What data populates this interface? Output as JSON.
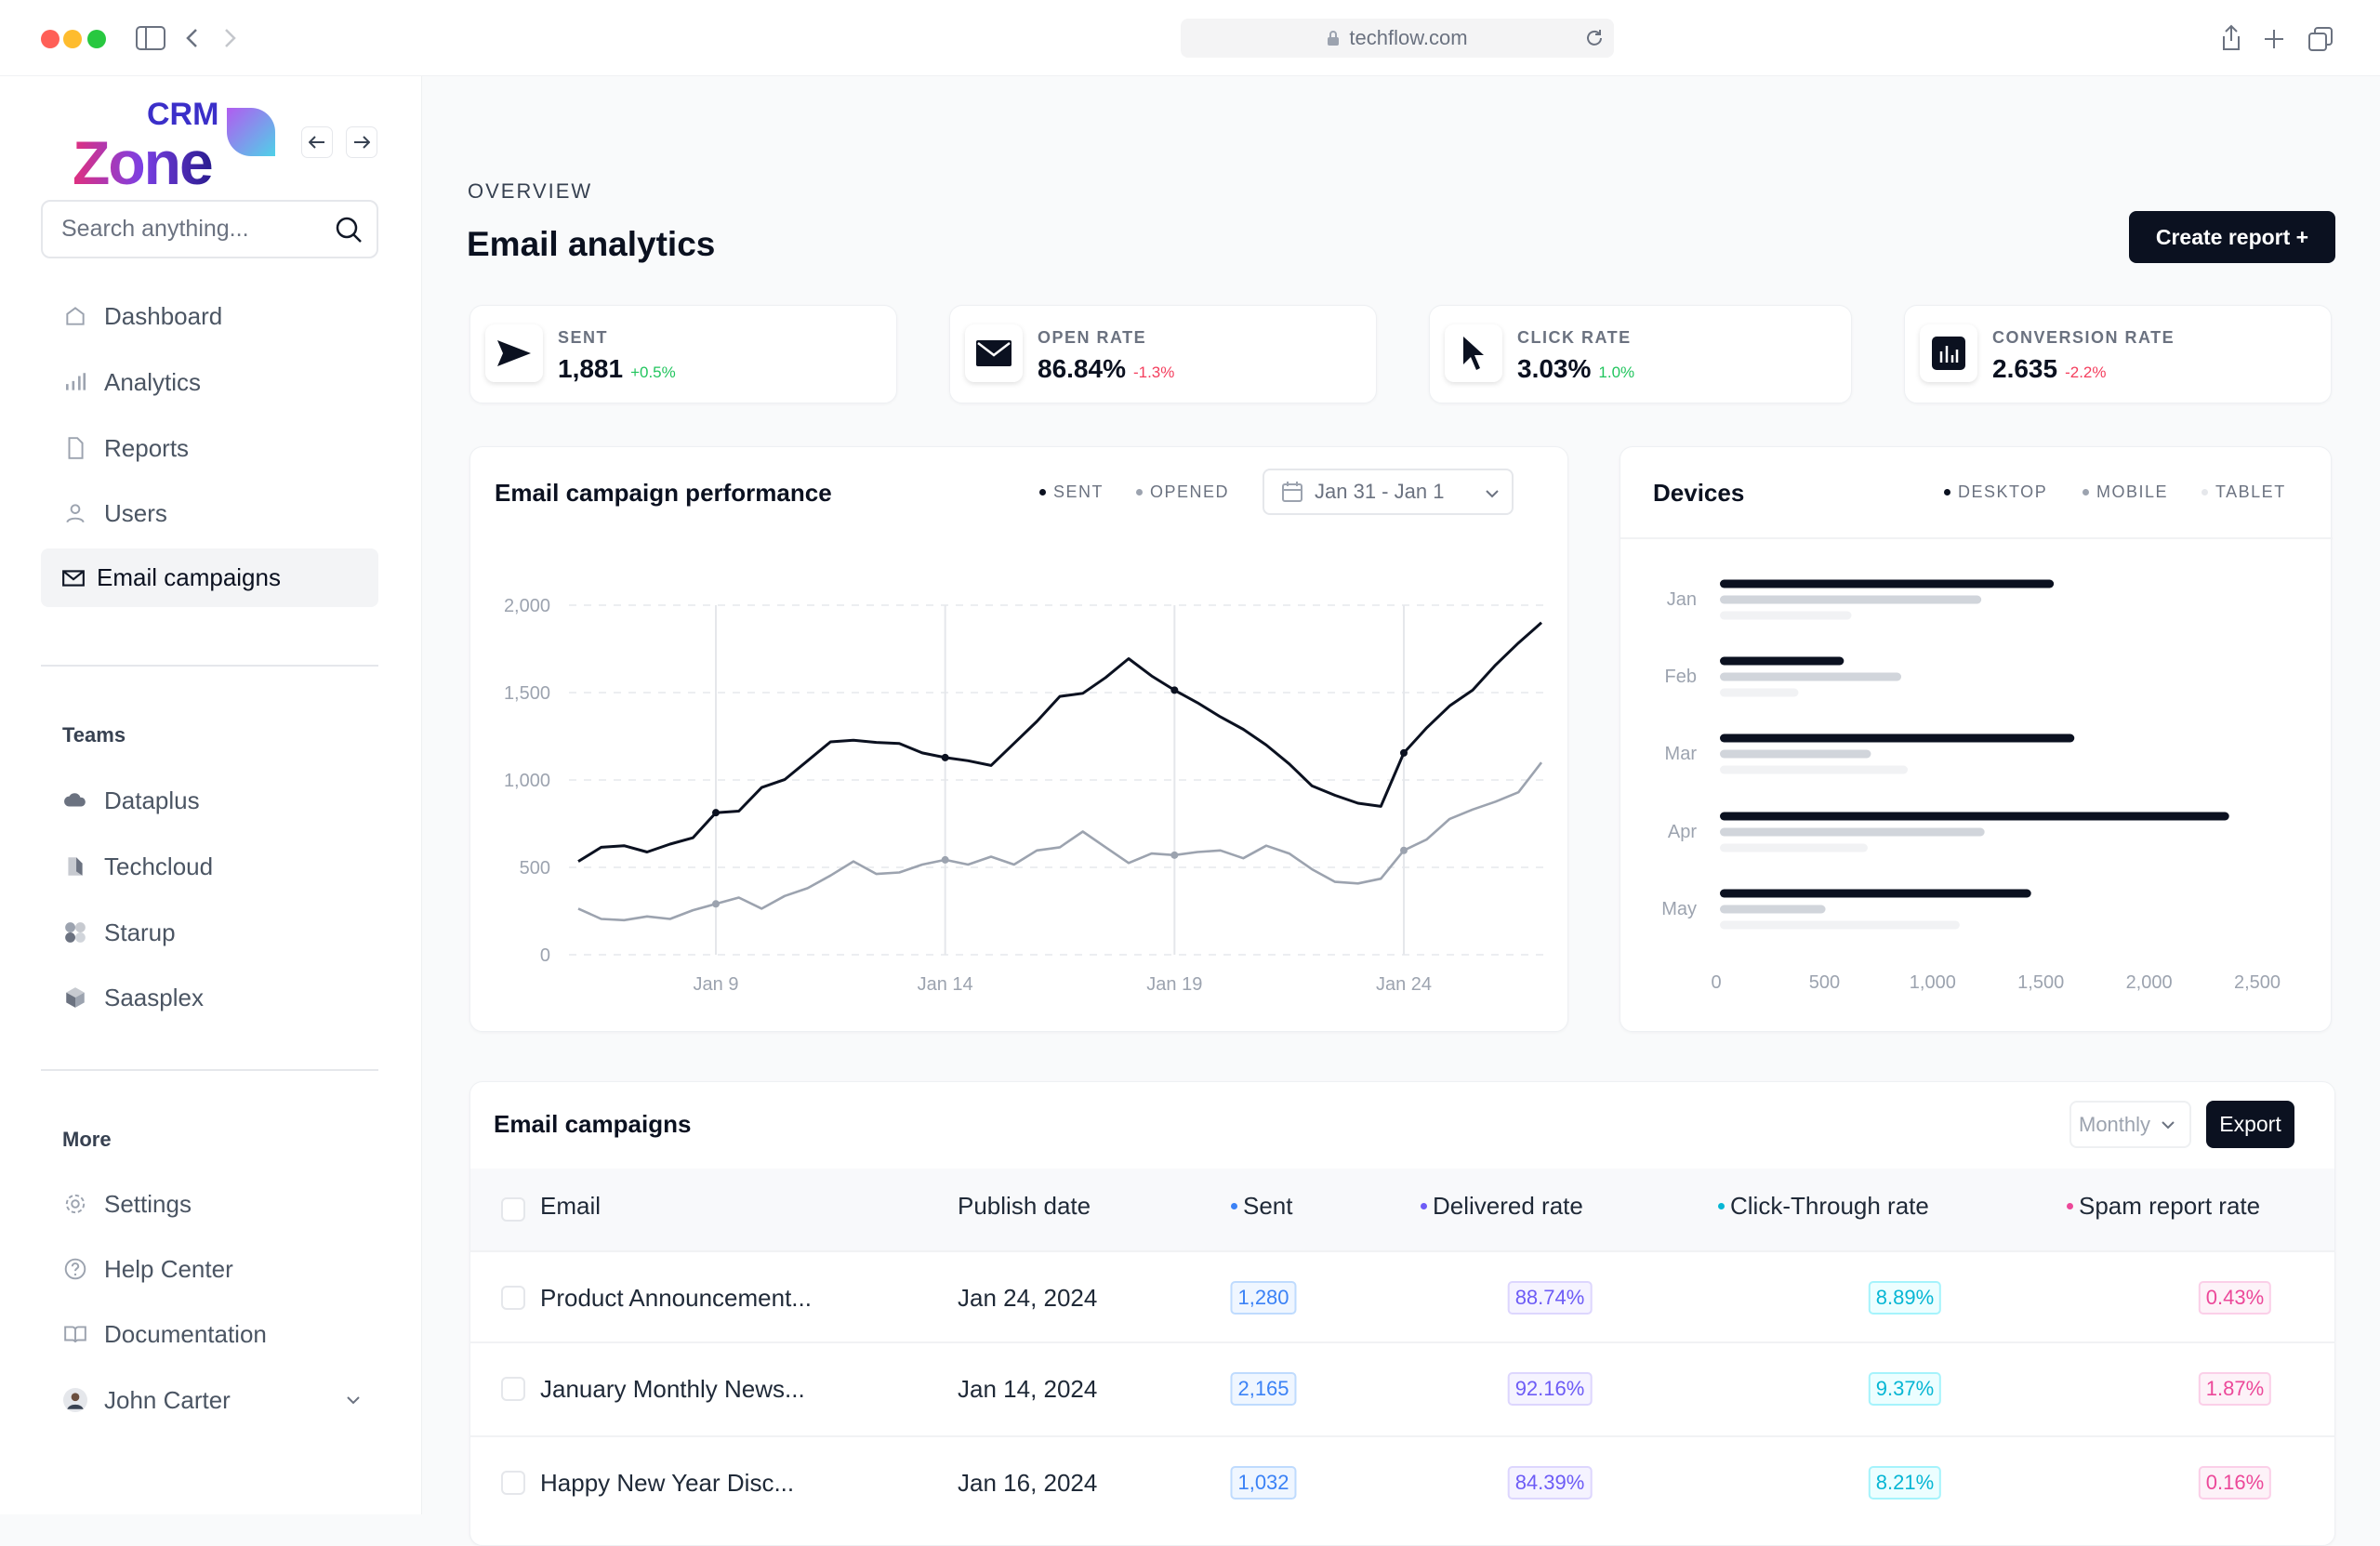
{
  "browser": {
    "url": "techflow.com"
  },
  "sidebar": {
    "logo": {
      "top": "CRM",
      "main": "Zone"
    },
    "search_placeholder": "Search anything...",
    "nav": [
      {
        "label": "Dashboard",
        "icon": "home-icon"
      },
      {
        "label": "Analytics",
        "icon": "bar-chart-icon"
      },
      {
        "label": "Reports",
        "icon": "file-icon"
      },
      {
        "label": "Users",
        "icon": "user-icon"
      },
      {
        "label": "Email campaigns",
        "icon": "mail-icon",
        "active": true
      }
    ],
    "teams_heading": "Teams",
    "teams": [
      {
        "label": "Dataplus"
      },
      {
        "label": "Techcloud"
      },
      {
        "label": "Starup"
      },
      {
        "label": "Saasplex"
      }
    ],
    "more_heading": "More",
    "more": [
      {
        "label": "Settings",
        "icon": "gear-icon"
      },
      {
        "label": "Help Center",
        "icon": "help-icon"
      },
      {
        "label": "Documentation",
        "icon": "book-icon"
      }
    ],
    "user": {
      "name": "John Carter"
    }
  },
  "header": {
    "eyebrow": "OVERVIEW",
    "title": "Email analytics",
    "create_label": "Create report +"
  },
  "stats": [
    {
      "label": "SENT",
      "value": "1,881",
      "change": "+0.5%",
      "trend": "up",
      "icon": "send-icon"
    },
    {
      "label": "OPEN RATE",
      "value": "86.84%",
      "change": "-1.3%",
      "trend": "down",
      "icon": "envelope-icon"
    },
    {
      "label": "CLICK RATE",
      "value": "3.03%",
      "change": "1.0%",
      "trend": "up",
      "icon": "cursor-icon"
    },
    {
      "label": "CONVERSION RATE",
      "value": "2.635",
      "change": "-2.2%",
      "trend": "down",
      "icon": "chart-icon"
    }
  ],
  "colors": {
    "dark": "#0b1120",
    "gray": "#9ca3af",
    "light": "#d1d5db",
    "faint": "#f1f2f4",
    "up": "#22c55e",
    "down": "#f43f5e",
    "sent": "#3b82f6",
    "delivered": "#6d5cf6",
    "ctr": "#06b6d4",
    "spam": "#ec4899"
  },
  "chart_data": [
    {
      "type": "line",
      "title": "Email campaign performance",
      "date_range": "Jan 31 - Jan 1",
      "legend": [
        "SENT",
        "OPENED"
      ],
      "ylim": [
        0,
        2000
      ],
      "yticks": [
        "0",
        "500",
        "1,000",
        "1,500",
        "2,000"
      ],
      "ytick_values": [
        0,
        500,
        1000,
        1500,
        2000
      ],
      "xticks": [
        "Jan 9",
        "Jan 14",
        "Jan 19",
        "Jan 24"
      ],
      "xtick_days": [
        9,
        14,
        19,
        24
      ],
      "xlim": [
        "Jan 6",
        "Jan 27"
      ],
      "x": [
        "Jan 6 00:00",
        "Jan 6 12:00",
        "Jan 7 00:00",
        "Jan 7 12:00",
        "Jan 8 00:00",
        "Jan 8 12:00",
        "Jan 9 00:00",
        "Jan 9 12:00",
        "Jan 10 00:00",
        "Jan 10 12:00",
        "Jan 11 00:00",
        "Jan 11 12:00",
        "Jan 12 00:00",
        "Jan 12 12:00",
        "Jan 13 00:00",
        "Jan 13 12:00",
        "Jan 14 00:00",
        "Jan 14 12:00",
        "Jan 15 00:00",
        "Jan 15 12:00",
        "Jan 16 00:00",
        "Jan 16 12:00",
        "Jan 17 00:00",
        "Jan 17 12:00",
        "Jan 18 00:00",
        "Jan 18 12:00",
        "Jan 19 00:00",
        "Jan 19 12:00",
        "Jan 20 00:00",
        "Jan 20 12:00",
        "Jan 21 00:00",
        "Jan 21 12:00",
        "Jan 22 00:00",
        "Jan 22 12:00",
        "Jan 23 00:00",
        "Jan 23 12:00",
        "Jan 24 00:00",
        "Jan 24 12:00",
        "Jan 25 00:00",
        "Jan 25 12:00",
        "Jan 26 00:00",
        "Jan 26 12:00",
        "Jan 27 00:00"
      ],
      "series": [
        {
          "name": "SENT",
          "color": "#0b1120",
          "values": [
            534,
            615,
            624,
            588,
            633,
            669,
            813,
            822,
            957,
            1002,
            1110,
            1218,
            1227,
            1215,
            1209,
            1155,
            1128,
            1110,
            1083,
            1209,
            1335,
            1478,
            1496,
            1586,
            1694,
            1595,
            1514,
            1442,
            1361,
            1290,
            1200,
            1092,
            966,
            912,
            867,
            849,
            1155,
            1299,
            1424,
            1514,
            1658,
            1784,
            1900
          ]
        },
        {
          "name": "OPENED",
          "color": "#9ca3af",
          "values": [
            264,
            205,
            198,
            219,
            205,
            255,
            291,
            327,
            264,
            336,
            381,
            453,
            534,
            462,
            471,
            516,
            543,
            516,
            561,
            516,
            597,
            615,
            705,
            615,
            525,
            579,
            570,
            588,
            597,
            552,
            624,
            579,
            489,
            417,
            408,
            435,
            597,
            660,
            777,
            831,
            876,
            930,
            1100
          ]
        }
      ],
      "grid": true
    },
    {
      "type": "bar",
      "orientation": "horizontal",
      "title": "Devices",
      "categories": [
        "Jan",
        "Feb",
        "Mar",
        "Apr",
        "May"
      ],
      "xlim": [
        0,
        2500
      ],
      "xticks": [
        "0",
        "500",
        "1,000",
        "1,500",
        "2,000",
        "2,500"
      ],
      "series": [
        {
          "name": "DESKTOP",
          "color": "#0b1120",
          "values": [
            1560,
            590,
            1655,
            2370,
            1455
          ]
        },
        {
          "name": "MOBILE",
          "color": "#d1d5db",
          "values": [
            1225,
            855,
            715,
            1240,
            505
          ]
        },
        {
          "name": "TABLET",
          "color": "#f1f2f4",
          "values": [
            625,
            380,
            885,
            700,
            1125
          ]
        }
      ]
    }
  ],
  "campaigns": {
    "title": "Email campaigns",
    "period": "Monthly",
    "export_label": "Export",
    "columns": [
      "Email",
      "Publish date",
      "Sent",
      "Delivered rate",
      "Click-Through rate",
      "Spam report rate"
    ],
    "rows": [
      {
        "email": "Product Announcement...",
        "date": "Jan 24, 2024",
        "sent": "1,280",
        "delivered": "88.74%",
        "ctr": "8.89%",
        "spam": "0.43%"
      },
      {
        "email": "January Monthly News...",
        "date": "Jan 14, 2024",
        "sent": "2,165",
        "delivered": "92.16%",
        "ctr": "9.37%",
        "spam": "1.87%"
      },
      {
        "email": "Happy New Year Disc...",
        "date": "Jan 16, 2024",
        "sent": "1,032",
        "delivered": "84.39%",
        "ctr": "8.21%",
        "spam": "0.16%"
      }
    ]
  }
}
